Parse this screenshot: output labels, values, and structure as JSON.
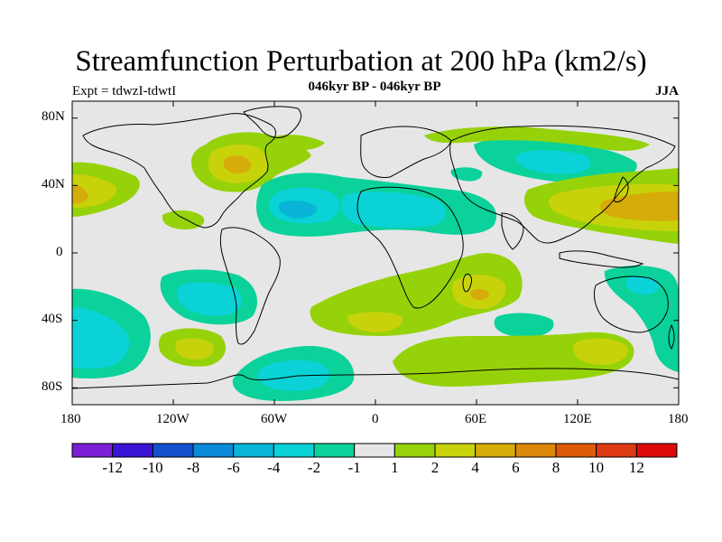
{
  "title": "Streamfunction Perturbation at 200 hPa (km2/s)",
  "subtitle": "046kyr BP - 046kyr BP",
  "left_string": "Expt = tdwzI-tdwtI",
  "season": "JJA",
  "lat_labels": [
    "80N",
    "40N",
    "0",
    "40S",
    "80S"
  ],
  "lon_labels": [
    "180",
    "120W",
    "60W",
    "0",
    "60E",
    "120E",
    "180"
  ],
  "colorbar": {
    "labels": [
      "-12",
      "-10",
      "-8",
      "-6",
      "-4",
      "-2",
      "-1",
      "1",
      "2",
      "4",
      "6",
      "8",
      "10",
      "12"
    ],
    "colors": [
      "#7a1fd6",
      "#3a14d4",
      "#1450cc",
      "#0a8ad8",
      "#0ab4d8",
      "#0ad2d6",
      "#0ad29a",
      "#e6e6e6",
      "#96d20a",
      "#c8d20a",
      "#d6ac0a",
      "#dc880a",
      "#dc5a0a",
      "#dc3a14",
      "#dc0a0a"
    ]
  },
  "colors": {
    "neutral": "#e6e6e6",
    "pos1": "#96d20a",
    "pos2": "#c8d20a",
    "pos4": "#d6ac0a",
    "pos6": "#dc880a",
    "neg1": "#0ad29a",
    "neg2": "#0ad2d6",
    "neg4": "#0ab4d8"
  }
}
